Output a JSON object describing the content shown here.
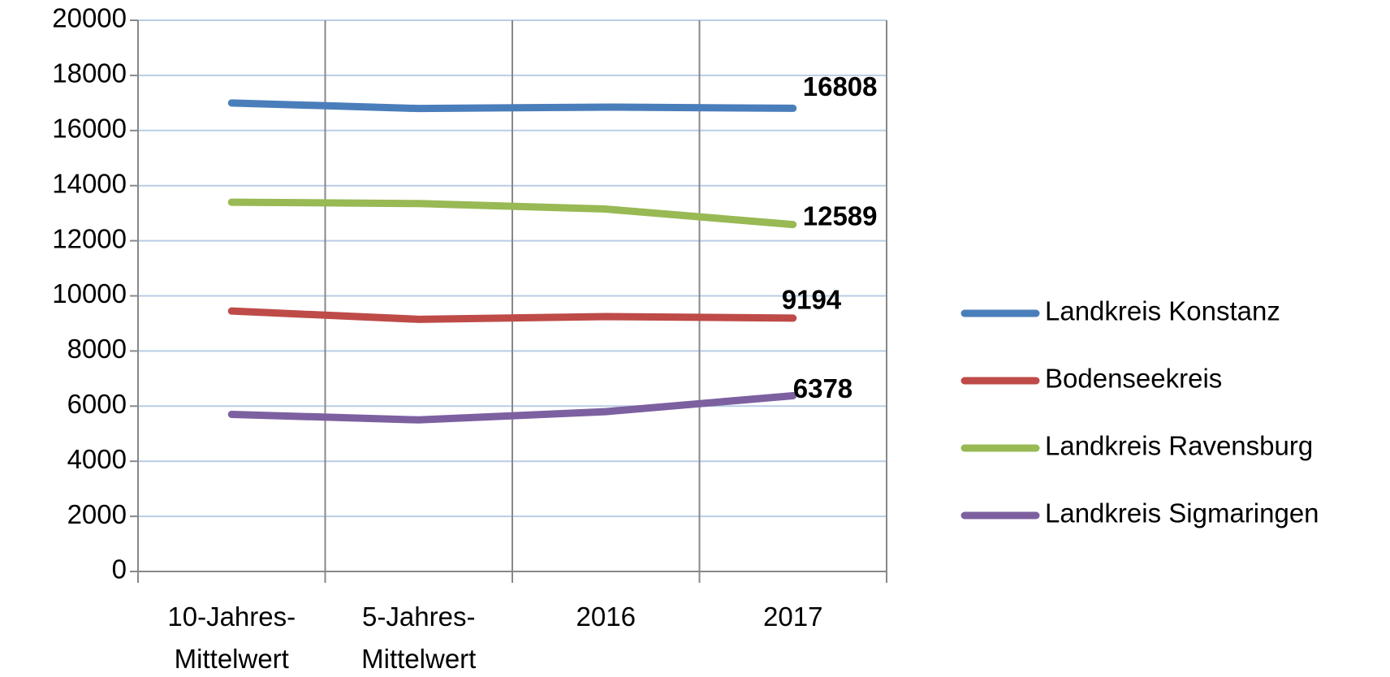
{
  "chart_data": {
    "type": "line",
    "categories": [
      "10-Jahres-\nMittelwert",
      "5-Jahres-\nMittelwert",
      "2016",
      "2017"
    ],
    "series": [
      {
        "name": "Landkreis Konstanz",
        "color": "#4a7ebb",
        "values": [
          17000,
          16800,
          16850,
          16808
        ]
      },
      {
        "name": "Bodenseekreis",
        "color": "#be4b48",
        "values": [
          9450,
          9150,
          9250,
          9194
        ]
      },
      {
        "name": "Landkreis Ravensburg",
        "color": "#98b954",
        "values": [
          13400,
          13350,
          13150,
          12589
        ]
      },
      {
        "name": "Landkreis Sigmaringen",
        "color": "#7d60a0",
        "values": [
          5700,
          5500,
          5800,
          6378
        ]
      }
    ],
    "ylim": [
      0,
      20000
    ],
    "yticks": [
      0,
      2000,
      4000,
      6000,
      8000,
      10000,
      12000,
      14000,
      16000,
      18000,
      20000
    ],
    "grid": true,
    "legend": "right"
  }
}
